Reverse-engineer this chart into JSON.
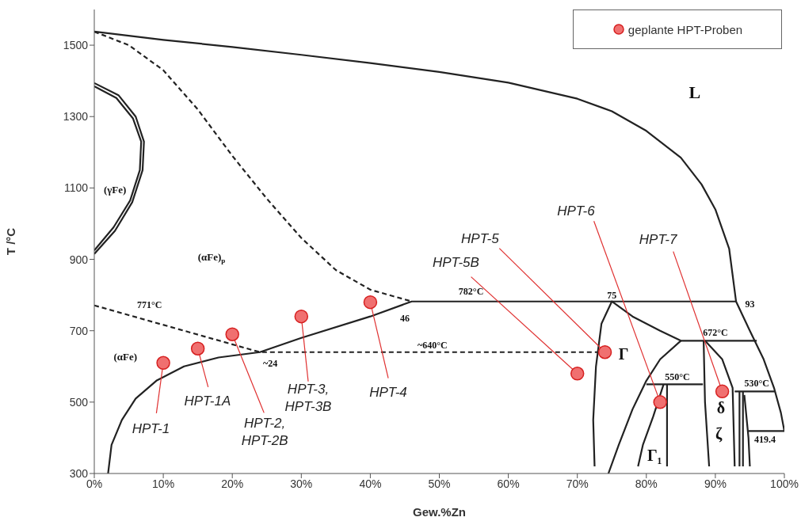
{
  "chart_data": {
    "type": "line",
    "xlabel": "Gew.%Zn",
    "ylabel": "T /°C",
    "xlim": [
      0,
      100
    ],
    "xticks": [
      {
        "value": 0,
        "label": "0%"
      },
      {
        "value": 10,
        "label": "10%"
      },
      {
        "value": 20,
        "label": "20%"
      },
      {
        "value": 30,
        "label": "30%"
      },
      {
        "value": 40,
        "label": "40%"
      },
      {
        "value": 50,
        "label": "50%"
      },
      {
        "value": 60,
        "label": "60%"
      },
      {
        "value": 70,
        "label": "70%"
      },
      {
        "value": 80,
        "label": "80%"
      },
      {
        "value": 90,
        "label": "90%"
      },
      {
        "value": 100,
        "label": "100%"
      }
    ],
    "ylim": [
      300,
      1600
    ],
    "yticks": [
      300,
      500,
      700,
      900,
      1100,
      1300,
      1500
    ],
    "grid": false,
    "legend": "top right",
    "series": [
      {
        "type": "scatter",
        "name": "geplante HPT-Proben",
        "color": "#f07070",
        "marker": "circle",
        "x": [
          10,
          15,
          20,
          30,
          40,
          70,
          74,
          82,
          91
        ],
        "values": [
          610,
          650,
          690,
          740,
          780,
          580,
          640,
          500,
          530
        ]
      },
      {
        "color": "#222222",
        "line_style": "solid",
        "x": [
          0,
          10,
          20,
          30,
          40,
          50,
          60,
          70,
          75,
          80,
          85,
          88,
          90,
          92,
          93,
          95,
          97,
          98.5,
          99.5,
          100
        ],
        "values": [
          1538,
          1515,
          1495,
          1473,
          1450,
          1425,
          1395,
          1350,
          1315,
          1260,
          1185,
          1110,
          1040,
          930,
          782,
          700,
          620,
          540,
          470,
          419
        ]
      },
      {
        "color": "#222222",
        "line_style": "dashed",
        "x": [
          0,
          5,
          10,
          15,
          20,
          25,
          30,
          35,
          40,
          46
        ],
        "values": [
          1538,
          1500,
          1430,
          1320,
          1190,
          1070,
          960,
          870,
          815,
          782
        ]
      },
      {
        "color": "#222222",
        "line_style": "solid",
        "x": [
          2,
          2.5,
          4,
          6,
          9,
          13,
          18,
          24,
          30,
          40,
          46,
          93
        ],
        "values": [
          300,
          380,
          450,
          510,
          560,
          600,
          625,
          640,
          680,
          740,
          782,
          782
        ]
      },
      {
        "color": "#222222",
        "line_style": "dashed",
        "x": [
          0,
          24,
          73
        ],
        "values": [
          771,
          640,
          640
        ]
      },
      {
        "color": "#222222",
        "line_style": "solid",
        "x": [
          0,
          3,
          5.5,
          7,
          7.2,
          6,
          3.5,
          0
        ],
        "values": [
          915,
          980,
          1060,
          1150,
          1230,
          1300,
          1360,
          1394
        ]
      },
      {
        "color": "#222222",
        "line_style": "solid",
        "x": [
          0,
          2.8,
          5.2,
          6.6,
          6.8,
          5.6,
          3.2,
          0
        ],
        "values": [
          925,
          990,
          1065,
          1150,
          1230,
          1295,
          1352,
          1385
        ]
      },
      {
        "color": "#222222",
        "line_style": "solid",
        "x": [
          72.5,
          72.3,
          72.7,
          73.5,
          75,
          78,
          82,
          85,
          96
        ],
        "values": [
          320,
          450,
          600,
          720,
          782,
          740,
          700,
          672,
          672
        ]
      },
      {
        "color": "#222222",
        "line_style": "solid",
        "x": [
          85,
          82,
          80,
          78,
          76,
          74.5
        ],
        "values": [
          672,
          620,
          560,
          480,
          380,
          300
        ]
      },
      {
        "color": "#222222",
        "line_style": "solid",
        "x": [
          82.5,
          81,
          79.5,
          78.8
        ],
        "values": [
          550,
          460,
          380,
          320
        ]
      },
      {
        "color": "#222222",
        "line_style": "solid",
        "x": [
          80,
          88.2
        ],
        "values": [
          550,
          550
        ]
      },
      {
        "color": "#222222",
        "line_style": "solid",
        "x": [
          83,
          83
        ],
        "values": [
          550,
          320
        ]
      },
      {
        "color": "#222222",
        "line_style": "solid",
        "x": [
          88.3,
          88.5,
          89.1
        ],
        "values": [
          672,
          500,
          320
        ]
      },
      {
        "color": "#222222",
        "line_style": "solid",
        "x": [
          88.5,
          91,
          92.5,
          92.8
        ],
        "values": [
          672,
          620,
          540,
          320
        ]
      },
      {
        "color": "#222222",
        "line_style": "solid",
        "x": [
          92.8,
          98.6
        ],
        "values": [
          530,
          530
        ]
      },
      {
        "color": "#222222",
        "line_style": "solid",
        "x": [
          93.5,
          93.5
        ],
        "values": [
          530,
          320
        ]
      },
      {
        "color": "#222222",
        "line_style": "solid",
        "x": [
          94,
          94
        ],
        "values": [
          530,
          320
        ]
      },
      {
        "color": "#222222",
        "line_style": "solid",
        "x": [
          94.2,
          94.8,
          95
        ],
        "values": [
          520,
          400,
          320
        ]
      },
      {
        "color": "#222222",
        "line_style": "solid",
        "x": [
          94.8,
          100
        ],
        "values": [
          419,
          419
        ]
      }
    ],
    "annotations": [
      {
        "text": "HPT-1",
        "x": 10,
        "y": 610
      },
      {
        "text": "HPT-1A",
        "x": 15,
        "y": 650
      },
      {
        "text": "HPT-2, HPT-2B",
        "x": 20,
        "y": 690
      },
      {
        "text": "HPT-3, HPT-3B",
        "x": 30,
        "y": 740
      },
      {
        "text": "HPT-4",
        "x": 40,
        "y": 780
      },
      {
        "text": "HPT-5B",
        "x": 70,
        "y": 580
      },
      {
        "text": "HPT-5",
        "x": 74,
        "y": 640
      },
      {
        "text": "HPT-6",
        "x": 82,
        "y": 500
      },
      {
        "text": "HPT-7",
        "x": 91,
        "y": 530
      },
      "L",
      "(γFe)",
      "(αFe)$_{p}$",
      "(αFe)",
      "771°C",
      "~24",
      "~640°C",
      "782°C",
      "75",
      "93",
      "46",
      "672°C",
      "550°C",
      "530°C",
      "419.4",
      "Γ",
      "Γ₁",
      "δ",
      "ζ"
    ]
  }
}
